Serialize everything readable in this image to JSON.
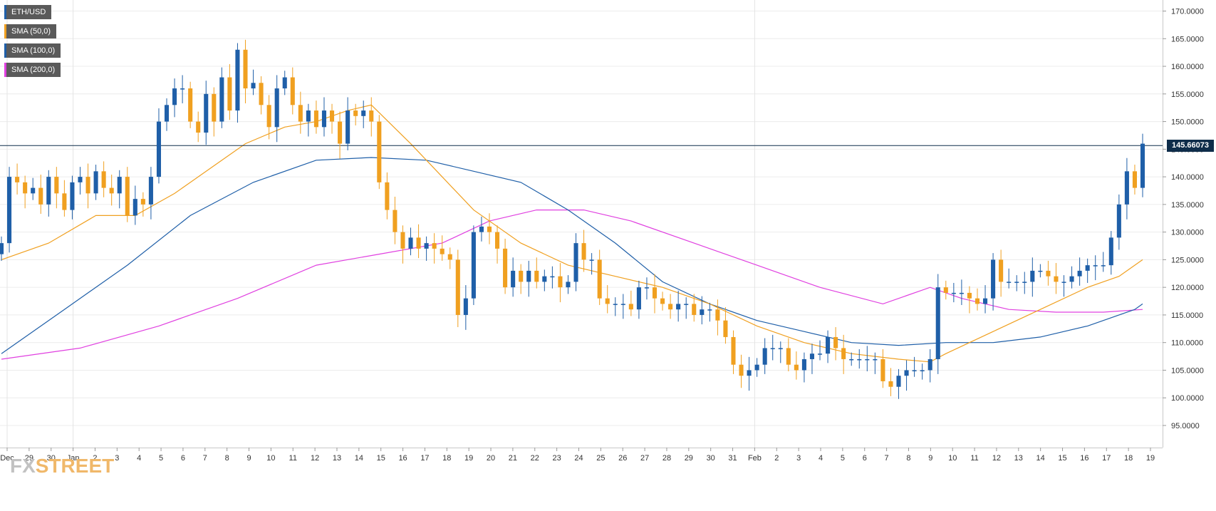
{
  "legend": [
    {
      "label": "ETH/USD",
      "color": "#1f5fa8"
    },
    {
      "label": "SMA (50,0)",
      "color": "#f0a020"
    },
    {
      "label": "SMA (100,0)",
      "color": "#1f5fa8"
    },
    {
      "label": "SMA (200,0)",
      "color": "#e040e0"
    }
  ],
  "logo": {
    "fx": "FX",
    "street": "STREET"
  },
  "current_price": "145.66073",
  "chart_data": {
    "type": "candlestick",
    "series_name": "ETH/USD",
    "y_ticks": [
      "95.0000",
      "100.0000",
      "105.0000",
      "110.0000",
      "115.0000",
      "120.0000",
      "125.0000",
      "130.0000",
      "135.0000",
      "140.0000",
      "145.0000",
      "150.0000",
      "155.0000",
      "160.0000",
      "165.0000",
      "170.0000"
    ],
    "ylim": [
      91,
      172
    ],
    "x_labels": [
      "Dec",
      "29",
      "30",
      "Jan",
      "2",
      "3",
      "4",
      "5",
      "6",
      "7",
      "8",
      "9",
      "10",
      "11",
      "12",
      "13",
      "14",
      "15",
      "16",
      "17",
      "18",
      "19",
      "20",
      "21",
      "22",
      "23",
      "24",
      "25",
      "26",
      "27",
      "28",
      "29",
      "30",
      "31",
      "Feb",
      "2",
      "3",
      "4",
      "5",
      "6",
      "7",
      "8",
      "9",
      "10",
      "11",
      "12",
      "13",
      "14",
      "15",
      "16",
      "17",
      "18",
      "19"
    ],
    "current_value": 145.66,
    "colors": {
      "up": "#1f5fa8",
      "down": "#f0a020",
      "sma50": "#f0a020",
      "sma100": "#1f5fa8",
      "sma200": "#e040e0",
      "price_line": "#0f2d4a"
    },
    "close_path": [
      [
        0,
        128
      ],
      [
        1,
        140
      ],
      [
        2,
        139
      ],
      [
        3,
        137
      ],
      [
        4,
        138
      ],
      [
        5,
        135
      ],
      [
        6,
        140
      ],
      [
        7,
        137
      ],
      [
        8,
        134
      ],
      [
        9,
        139
      ],
      [
        10,
        140
      ],
      [
        11,
        137
      ],
      [
        12,
        141
      ],
      [
        13,
        138
      ],
      [
        14,
        137
      ],
      [
        15,
        140
      ],
      [
        16,
        133
      ],
      [
        17,
        136
      ],
      [
        18,
        135
      ],
      [
        19,
        140
      ],
      [
        20,
        150
      ],
      [
        21,
        153
      ],
      [
        22,
        156
      ],
      [
        23,
        156
      ],
      [
        24,
        150
      ],
      [
        25,
        148
      ],
      [
        26,
        155
      ],
      [
        27,
        150
      ],
      [
        28,
        158
      ],
      [
        29,
        152
      ],
      [
        30,
        163
      ],
      [
        31,
        156
      ],
      [
        32,
        157
      ],
      [
        33,
        153
      ],
      [
        34,
        149
      ],
      [
        35,
        156
      ],
      [
        36,
        158
      ],
      [
        37,
        153
      ],
      [
        38,
        150
      ],
      [
        39,
        152
      ],
      [
        40,
        149
      ],
      [
        41,
        152
      ],
      [
        42,
        150
      ],
      [
        43,
        146
      ],
      [
        44,
        152
      ],
      [
        45,
        151
      ],
      [
        46,
        152
      ],
      [
        47,
        150
      ],
      [
        48,
        139
      ],
      [
        49,
        134
      ],
      [
        50,
        130
      ],
      [
        51,
        127
      ],
      [
        52,
        129
      ],
      [
        53,
        127
      ],
      [
        54,
        128
      ],
      [
        55,
        127
      ],
      [
        56,
        126
      ],
      [
        57,
        125
      ],
      [
        58,
        115
      ],
      [
        59,
        118
      ],
      [
        60,
        130
      ],
      [
        61,
        131
      ],
      [
        62,
        130
      ],
      [
        63,
        127
      ],
      [
        64,
        120
      ],
      [
        65,
        123
      ],
      [
        66,
        121
      ],
      [
        67,
        123
      ],
      [
        68,
        121
      ],
      [
        69,
        122
      ],
      [
        70,
        122
      ],
      [
        71,
        120
      ],
      [
        72,
        121
      ],
      [
        73,
        128
      ],
      [
        74,
        125
      ],
      [
        75,
        125
      ],
      [
        76,
        118
      ],
      [
        77,
        117
      ],
      [
        78,
        117
      ],
      [
        79,
        117
      ],
      [
        80,
        116
      ],
      [
        81,
        120
      ],
      [
        82,
        120
      ],
      [
        83,
        118
      ],
      [
        84,
        117
      ],
      [
        85,
        116
      ],
      [
        86,
        117
      ],
      [
        87,
        117
      ],
      [
        88,
        115
      ],
      [
        89,
        116
      ],
      [
        90,
        116
      ],
      [
        91,
        114
      ],
      [
        92,
        111
      ],
      [
        93,
        106
      ],
      [
        94,
        104
      ],
      [
        95,
        105
      ],
      [
        96,
        106
      ],
      [
        97,
        109
      ],
      [
        98,
        109
      ],
      [
        99,
        109
      ],
      [
        100,
        106
      ],
      [
        101,
        105
      ],
      [
        102,
        107
      ],
      [
        103,
        108
      ],
      [
        104,
        108
      ],
      [
        105,
        111
      ],
      [
        106,
        109
      ],
      [
        107,
        107
      ],
      [
        108,
        107
      ],
      [
        109,
        107
      ],
      [
        110,
        107
      ],
      [
        111,
        107
      ],
      [
        112,
        103
      ],
      [
        113,
        102
      ],
      [
        114,
        104
      ],
      [
        115,
        105
      ],
      [
        116,
        105
      ],
      [
        117,
        105
      ],
      [
        118,
        107
      ],
      [
        119,
        120
      ],
      [
        120,
        119
      ],
      [
        121,
        119
      ],
      [
        122,
        119
      ],
      [
        123,
        118
      ],
      [
        124,
        117
      ],
      [
        125,
        118
      ],
      [
        126,
        125
      ],
      [
        127,
        121
      ],
      [
        128,
        121
      ],
      [
        129,
        121
      ],
      [
        130,
        121
      ],
      [
        131,
        123
      ],
      [
        132,
        123
      ],
      [
        133,
        122
      ],
      [
        134,
        121
      ],
      [
        135,
        121
      ],
      [
        136,
        122
      ],
      [
        137,
        123
      ],
      [
        138,
        124
      ],
      [
        139,
        124
      ],
      [
        140,
        124
      ],
      [
        141,
        129
      ],
      [
        142,
        135
      ],
      [
        143,
        141
      ],
      [
        144,
        138
      ],
      [
        145,
        146
      ]
    ],
    "sma50": [
      [
        0,
        125
      ],
      [
        6,
        128
      ],
      [
        12,
        133
      ],
      [
        17,
        133
      ],
      [
        22,
        137
      ],
      [
        27,
        142
      ],
      [
        31,
        146
      ],
      [
        36,
        149
      ],
      [
        40,
        150
      ],
      [
        44,
        152
      ],
      [
        47,
        153
      ],
      [
        52,
        146
      ],
      [
        56,
        140
      ],
      [
        60,
        134
      ],
      [
        66,
        128
      ],
      [
        72,
        124
      ],
      [
        78,
        122
      ],
      [
        84,
        120
      ],
      [
        90,
        117
      ],
      [
        96,
        113
      ],
      [
        102,
        110
      ],
      [
        108,
        108
      ],
      [
        114,
        107
      ],
      [
        118,
        106.5
      ],
      [
        120,
        108
      ],
      [
        126,
        112
      ],
      [
        132,
        116
      ],
      [
        138,
        120
      ],
      [
        142,
        122
      ],
      [
        145,
        125
      ]
    ],
    "sma100": [
      [
        0,
        108
      ],
      [
        8,
        116
      ],
      [
        16,
        124
      ],
      [
        24,
        133
      ],
      [
        32,
        139
      ],
      [
        40,
        143
      ],
      [
        47,
        143.5
      ],
      [
        54,
        143
      ],
      [
        60,
        141
      ],
      [
        66,
        139
      ],
      [
        72,
        134
      ],
      [
        78,
        128
      ],
      [
        84,
        121
      ],
      [
        90,
        117
      ],
      [
        96,
        114
      ],
      [
        102,
        112
      ],
      [
        108,
        110
      ],
      [
        114,
        109.5
      ],
      [
        120,
        110
      ],
      [
        126,
        110
      ],
      [
        132,
        111
      ],
      [
        138,
        113
      ],
      [
        144,
        116
      ],
      [
        145,
        117
      ]
    ],
    "sma200": [
      [
        0,
        107
      ],
      [
        10,
        109
      ],
      [
        20,
        113
      ],
      [
        30,
        118
      ],
      [
        40,
        124
      ],
      [
        48,
        126
      ],
      [
        56,
        128
      ],
      [
        62,
        132
      ],
      [
        68,
        134
      ],
      [
        74,
        134
      ],
      [
        80,
        132
      ],
      [
        88,
        128
      ],
      [
        96,
        124
      ],
      [
        104,
        120
      ],
      [
        112,
        117
      ],
      [
        118,
        120
      ],
      [
        122,
        118
      ],
      [
        128,
        116
      ],
      [
        134,
        115.5
      ],
      [
        140,
        115.5
      ],
      [
        145,
        116
      ]
    ]
  }
}
